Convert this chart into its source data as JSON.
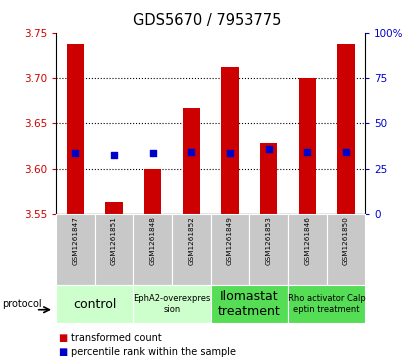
{
  "title": "GDS5670 / 7953775",
  "samples": [
    "GSM1261847",
    "GSM1261851",
    "GSM1261848",
    "GSM1261852",
    "GSM1261849",
    "GSM1261853",
    "GSM1261846",
    "GSM1261850"
  ],
  "bar_tops": [
    3.738,
    3.563,
    3.6,
    3.667,
    3.712,
    3.628,
    3.7,
    3.738
  ],
  "bar_base": 3.55,
  "percentile_values": [
    3.617,
    3.615,
    3.617,
    3.618,
    3.617,
    3.622,
    3.618,
    3.618
  ],
  "ylim_left": [
    3.55,
    3.75
  ],
  "ylim_right": [
    0,
    100
  ],
  "yticks_left": [
    3.55,
    3.6,
    3.65,
    3.7,
    3.75
  ],
  "yticks_right": [
    0,
    25,
    50,
    75,
    100
  ],
  "bar_color": "#cc0000",
  "dot_color": "#0000cc",
  "protocol_groups": [
    {
      "label": "control",
      "indices": [
        0,
        1
      ],
      "color": "#ccffcc",
      "text_size": 9
    },
    {
      "label": "EphA2-overexpres\nsion",
      "indices": [
        2,
        3
      ],
      "color": "#ccffcc",
      "text_size": 6
    },
    {
      "label": "Ilomastat\ntreatment",
      "indices": [
        4,
        5
      ],
      "color": "#55dd55",
      "text_size": 9
    },
    {
      "label": "Rho activator Calp\neptin treatment",
      "indices": [
        6,
        7
      ],
      "color": "#55dd55",
      "text_size": 6
    }
  ],
  "xlabel_color": "#cc0000",
  "ylabel_right_color": "#0000cc",
  "legend_items": [
    {
      "color": "#cc0000",
      "label": "transformed count"
    },
    {
      "color": "#0000cc",
      "label": "percentile rank within the sample"
    }
  ],
  "cell_bg": "#c8c8c8",
  "cell_border": "#ffffff"
}
